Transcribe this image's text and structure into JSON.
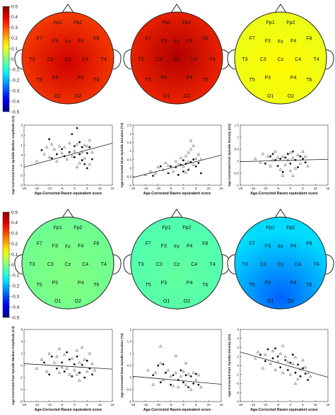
{
  "colorbar": {
    "ticks": [
      "0.5",
      "0.4",
      "0.3",
      "0.2",
      "0.1",
      "0",
      "-0.1",
      "-0.2",
      "-0.3",
      "-0.4",
      "-0.5"
    ],
    "values": [
      0.5,
      0.4,
      0.3,
      0.2,
      0.1,
      0,
      -0.1,
      -0.2,
      -0.3,
      -0.4,
      -0.5
    ]
  },
  "electrodes": [
    "Fp1",
    "Fp2",
    "F7",
    "F3",
    "Fz",
    "F4",
    "F8",
    "T3",
    "C3",
    "Cz",
    "C4",
    "T4",
    "T5",
    "P3",
    "P4",
    "T6",
    "O1",
    "O2"
  ],
  "topomaps": [
    {
      "panel": "top-left",
      "base_value": 0.3,
      "hot_value": 0.42
    },
    {
      "panel": "top-middle",
      "base_value": 0.33,
      "hot_value": 0.45
    },
    {
      "panel": "top-right",
      "base_value": 0.1,
      "hot_value": 0.13
    },
    {
      "panel": "bottom-left",
      "base_value": -0.02,
      "hot_value": 0.0
    },
    {
      "panel": "bottom-middle",
      "base_value": -0.05,
      "hot_value": -0.03
    },
    {
      "panel": "bottom-right",
      "base_value": -0.16,
      "hot_value": -0.28
    }
  ],
  "xlabel": "Age-Corrected Raven equivalent score",
  "xticks": [
    "-20",
    "-15",
    "-10",
    "-5",
    "0",
    "5",
    "10",
    "15"
  ],
  "chart_data": [
    {
      "type": "scatter",
      "panel": "top-left",
      "ylabel": "Age-Corrected Fast Spindle Median Amplitude (C4)",
      "xlim": [
        -20,
        15
      ],
      "ylim": [
        -3,
        3
      ],
      "yticks": [
        "-3",
        "-2",
        "-1",
        "0",
        "1",
        "2",
        "3"
      ],
      "fit": {
        "x": [
          -20,
          15
        ],
        "y": [
          -1.2,
          1.2
        ]
      },
      "filled": [
        [
          -13,
          0.5
        ],
        [
          -10,
          1.6
        ],
        [
          -9,
          -0.3
        ],
        [
          -7,
          0.1
        ],
        [
          -5,
          0.6
        ],
        [
          -4,
          -0.1
        ],
        [
          -2,
          0.3
        ],
        [
          -1,
          2.1
        ],
        [
          0,
          0.9
        ],
        [
          0,
          -0.2
        ],
        [
          1,
          2.7
        ],
        [
          2,
          0.1
        ],
        [
          3,
          -0.5
        ],
        [
          3,
          0.8
        ],
        [
          4,
          -0.9
        ],
        [
          5,
          0.2
        ],
        [
          5,
          -1.3
        ],
        [
          6,
          0.8
        ],
        [
          7,
          -0.4
        ],
        [
          2,
          1.3
        ]
      ],
      "open": [
        [
          -15,
          -0.6
        ],
        [
          -12,
          0.1
        ],
        [
          -11,
          0.8
        ],
        [
          -10,
          -0.2
        ],
        [
          -9,
          1.1
        ],
        [
          -8,
          0.6
        ],
        [
          -7,
          -0.6
        ],
        [
          -6,
          0.9
        ],
        [
          -5,
          0.2
        ],
        [
          -4,
          0.8
        ],
        [
          -3,
          -0.4
        ],
        [
          -2,
          1.2
        ],
        [
          -1,
          -0.1
        ],
        [
          0,
          0.4
        ],
        [
          1,
          -1.2
        ],
        [
          1,
          1.1
        ],
        [
          2,
          -0.8
        ],
        [
          3,
          0.3
        ],
        [
          4,
          1.0
        ],
        [
          4,
          -0.3
        ],
        [
          5,
          0.9
        ],
        [
          6,
          -0.9
        ],
        [
          6,
          1.5
        ],
        [
          7,
          0.3
        ]
      ]
    },
    {
      "type": "scatter",
      "panel": "top-middle",
      "ylabel": "Age-Corrected Slow Spindle Duration (T3)",
      "xlim": [
        -20,
        15
      ],
      "ylim": [
        -1,
        2.5
      ],
      "yticks": [
        "-1",
        "-0.5",
        "0",
        "0.5",
        "1",
        "1.5",
        "2",
        "2.5"
      ],
      "fit": {
        "x": [
          -20,
          15
        ],
        "y": [
          -0.55,
          0.75
        ]
      },
      "filled": [
        [
          -12,
          -0.45
        ],
        [
          -9,
          0.1
        ],
        [
          -6,
          -0.3
        ],
        [
          -5,
          0.1
        ],
        [
          -3,
          0.05
        ],
        [
          -2,
          -0.4
        ],
        [
          -1,
          0.2
        ],
        [
          0,
          -0.2
        ],
        [
          1,
          0.25
        ],
        [
          2,
          -0.1
        ],
        [
          3,
          0.35
        ],
        [
          4,
          0.5
        ],
        [
          5,
          0.1
        ],
        [
          6,
          0.3
        ],
        [
          7,
          -0.3
        ],
        [
          0,
          0.45
        ]
      ],
      "open": [
        [
          -15,
          -0.4
        ],
        [
          -13,
          -0.2
        ],
        [
          -11,
          -0.3
        ],
        [
          -10,
          0.05
        ],
        [
          -8,
          -0.1
        ],
        [
          -7,
          0.3
        ],
        [
          -6,
          0.15
        ],
        [
          -4,
          -0.2
        ],
        [
          -3,
          0.4
        ],
        [
          -2,
          0.2
        ],
        [
          -1,
          0.6
        ],
        [
          0,
          0.1
        ],
        [
          1,
          0.7
        ],
        [
          1,
          -0.25
        ],
        [
          2,
          0.9
        ],
        [
          2,
          0.35
        ],
        [
          3,
          1.1
        ],
        [
          4,
          0.2
        ],
        [
          4,
          1.3
        ],
        [
          5,
          0.55
        ],
        [
          6,
          0.8
        ],
        [
          7,
          0.5
        ],
        [
          3,
          1.6
        ]
      ]
    },
    {
      "type": "scatter",
      "panel": "top-right",
      "ylabel": "Age-Corrected Fast Spindle Density (O1)",
      "xlim": [
        -20,
        15
      ],
      "ylim": [
        -1,
        1.5
      ],
      "yticks": [
        "-1",
        "-0.5",
        "0",
        "0.5",
        "1",
        "1.5"
      ],
      "fit": {
        "x": [
          -20,
          15
        ],
        "y": [
          -0.02,
          0.08
        ]
      },
      "filled": [
        [
          -10,
          -0.1
        ],
        [
          -8,
          0.2
        ],
        [
          -6,
          0.05
        ],
        [
          -5,
          -0.2
        ],
        [
          -4,
          0.1
        ],
        [
          -3,
          -0.45
        ],
        [
          -2,
          0.15
        ],
        [
          -1,
          0.3
        ],
        [
          0,
          -0.1
        ],
        [
          1,
          0.4
        ],
        [
          2,
          0.05
        ],
        [
          3,
          -0.25
        ],
        [
          4,
          0.2
        ],
        [
          5,
          0.1
        ],
        [
          6,
          -0.05
        ],
        [
          -7,
          0.3
        ]
      ],
      "open": [
        [
          -14,
          0.1
        ],
        [
          -12,
          -0.05
        ],
        [
          -11,
          0.3
        ],
        [
          -9,
          0.2
        ],
        [
          -8,
          -0.2
        ],
        [
          -7,
          0.05
        ],
        [
          -6,
          0.4
        ],
        [
          -5,
          0.15
        ],
        [
          -4,
          -0.35
        ],
        [
          -3,
          0.2
        ],
        [
          -2,
          -0.15
        ],
        [
          -1,
          0.05
        ],
        [
          0,
          0.35
        ],
        [
          0,
          -0.4
        ],
        [
          1,
          0.15
        ],
        [
          2,
          -0.3
        ],
        [
          3,
          0.25
        ],
        [
          4,
          -0.1
        ],
        [
          5,
          0.4
        ],
        [
          6,
          0.2
        ],
        [
          7,
          -0.2
        ],
        [
          -3,
          -0.6
        ],
        [
          1,
          -0.6
        ]
      ]
    },
    {
      "type": "scatter",
      "panel": "bottom-left",
      "ylabel": "Age-Corrected Fast Spindle Median Amplitude (C4)",
      "xlim": [
        -20,
        15
      ],
      "ylim": [
        -6,
        6
      ],
      "yticks": [
        "-6",
        "-4",
        "-2",
        "0",
        "2",
        "4",
        "6"
      ],
      "fit": {
        "x": [
          -20,
          15
        ],
        "y": [
          0.3,
          -0.6
        ]
      },
      "filled": [
        [
          -12,
          0.5
        ],
        [
          -10,
          -1.5
        ],
        [
          -9,
          1.5
        ],
        [
          -7,
          -0.5
        ],
        [
          -5,
          0.5
        ],
        [
          -4,
          -1.0
        ],
        [
          -2,
          1.0
        ],
        [
          -1,
          -1.8
        ],
        [
          0,
          0.2
        ],
        [
          1,
          1.5
        ],
        [
          2,
          -1.2
        ],
        [
          3,
          0.1
        ],
        [
          4,
          -2.0
        ],
        [
          5,
          0.8
        ],
        [
          6,
          -0.5
        ],
        [
          7,
          -1.5
        ],
        [
          -3,
          2.2
        ]
      ],
      "open": [
        [
          -15,
          -0.5
        ],
        [
          -13,
          1.0
        ],
        [
          -11,
          -1.0
        ],
        [
          -10,
          2.0
        ],
        [
          -8,
          0.5
        ],
        [
          -7,
          1.5
        ],
        [
          -6,
          -1.2
        ],
        [
          -5,
          -0.3
        ],
        [
          -4,
          1.8
        ],
        [
          -3,
          -0.5
        ],
        [
          -2,
          -1.5
        ],
        [
          -1,
          1.2
        ],
        [
          0,
          -0.8
        ],
        [
          1,
          2.5
        ],
        [
          1,
          -1.5
        ],
        [
          2,
          0.5
        ],
        [
          3,
          3.0
        ],
        [
          4,
          1.0
        ],
        [
          5,
          -1.0
        ],
        [
          6,
          2.0
        ],
        [
          7,
          0.3
        ],
        [
          8,
          -0.8
        ],
        [
          2,
          -2.5
        ],
        [
          -6,
          2.8
        ]
      ]
    },
    {
      "type": "scatter",
      "panel": "bottom-middle",
      "ylabel": "Age-Corrected Slow Spindle Duration (T3)",
      "xlim": [
        -20,
        15
      ],
      "ylim": [
        -1,
        2
      ],
      "yticks": [
        "-1",
        "-0.5",
        "0",
        "0.5",
        "1",
        "1.5",
        "2"
      ],
      "fit": {
        "x": [
          -20,
          15
        ],
        "y": [
          0.05,
          -0.28
        ]
      },
      "filled": [
        [
          -12,
          0.1
        ],
        [
          -10,
          0.5
        ],
        [
          -9,
          -0.2
        ],
        [
          -7,
          0.2
        ],
        [
          -5,
          -0.3
        ],
        [
          -4,
          0.1
        ],
        [
          -2,
          -0.1
        ],
        [
          -1,
          0.3
        ],
        [
          0,
          -0.2
        ],
        [
          1,
          0.1
        ],
        [
          2,
          -0.4
        ],
        [
          3,
          0.05
        ],
        [
          4,
          -0.25
        ],
        [
          5,
          0.15
        ],
        [
          6,
          -0.3
        ],
        [
          -8,
          0.55
        ]
      ],
      "open": [
        [
          -14,
          0.3
        ],
        [
          -12,
          -0.3
        ],
        [
          -11,
          0.2
        ],
        [
          -9,
          0.6
        ],
        [
          -8,
          -0.1
        ],
        [
          -6,
          0.3
        ],
        [
          -5,
          0.05
        ],
        [
          -4,
          -0.35
        ],
        [
          -3,
          0.2
        ],
        [
          -2,
          -0.4
        ],
        [
          -1,
          0.05
        ],
        [
          0,
          0.25
        ],
        [
          1,
          -0.3
        ],
        [
          2,
          0.15
        ],
        [
          3,
          -0.5
        ],
        [
          4,
          0.2
        ],
        [
          5,
          -0.1
        ],
        [
          6,
          0.1
        ],
        [
          7,
          -0.4
        ],
        [
          -9,
          1.3
        ],
        [
          -3,
          0.9
        ],
        [
          1,
          0.6
        ]
      ]
    },
    {
      "type": "scatter",
      "panel": "bottom-right",
      "ylabel": "Age-Corrected Fast Spindle Density (O1)",
      "xlim": [
        -20,
        15
      ],
      "ylim": [
        -4,
        4
      ],
      "yticks": [
        "-4",
        "-3",
        "-2",
        "-1",
        "0",
        "1",
        "2",
        "3",
        "4"
      ],
      "fit": {
        "x": [
          -20,
          15
        ],
        "y": [
          1.5,
          -1.3
        ]
      },
      "filled": [
        [
          -12,
          1.2
        ],
        [
          -10,
          0.5
        ],
        [
          -9,
          1.8
        ],
        [
          -7,
          0.8
        ],
        [
          -5,
          1.0
        ],
        [
          -4,
          -0.2
        ],
        [
          -2,
          0.6
        ],
        [
          -1,
          -0.5
        ],
        [
          0,
          0.3
        ],
        [
          1,
          1.2
        ],
        [
          2,
          -0.8
        ],
        [
          3,
          0.1
        ],
        [
          4,
          -1.2
        ],
        [
          5,
          -0.3
        ],
        [
          6,
          -0.9
        ],
        [
          7,
          -1.6
        ],
        [
          -6,
          1.9
        ]
      ],
      "open": [
        [
          -14,
          0.8
        ],
        [
          -13,
          1.5
        ],
        [
          -11,
          -0.3
        ],
        [
          -10,
          1.2
        ],
        [
          -8,
          0.2
        ],
        [
          -7,
          1.6
        ],
        [
          -6,
          -0.5
        ],
        [
          -5,
          0.4
        ],
        [
          -4,
          1.3
        ],
        [
          -3,
          -0.8
        ],
        [
          -2,
          1.0
        ],
        [
          -1,
          0.4
        ],
        [
          0,
          -1.0
        ],
        [
          1,
          0.2
        ],
        [
          2,
          0.9
        ],
        [
          3,
          -1.5
        ],
        [
          4,
          -0.4
        ],
        [
          5,
          0.6
        ],
        [
          6,
          -0.2
        ],
        [
          7,
          -0.8
        ],
        [
          8,
          -1.2
        ],
        [
          -3,
          2.2
        ],
        [
          2,
          -2.0
        ]
      ]
    }
  ]
}
